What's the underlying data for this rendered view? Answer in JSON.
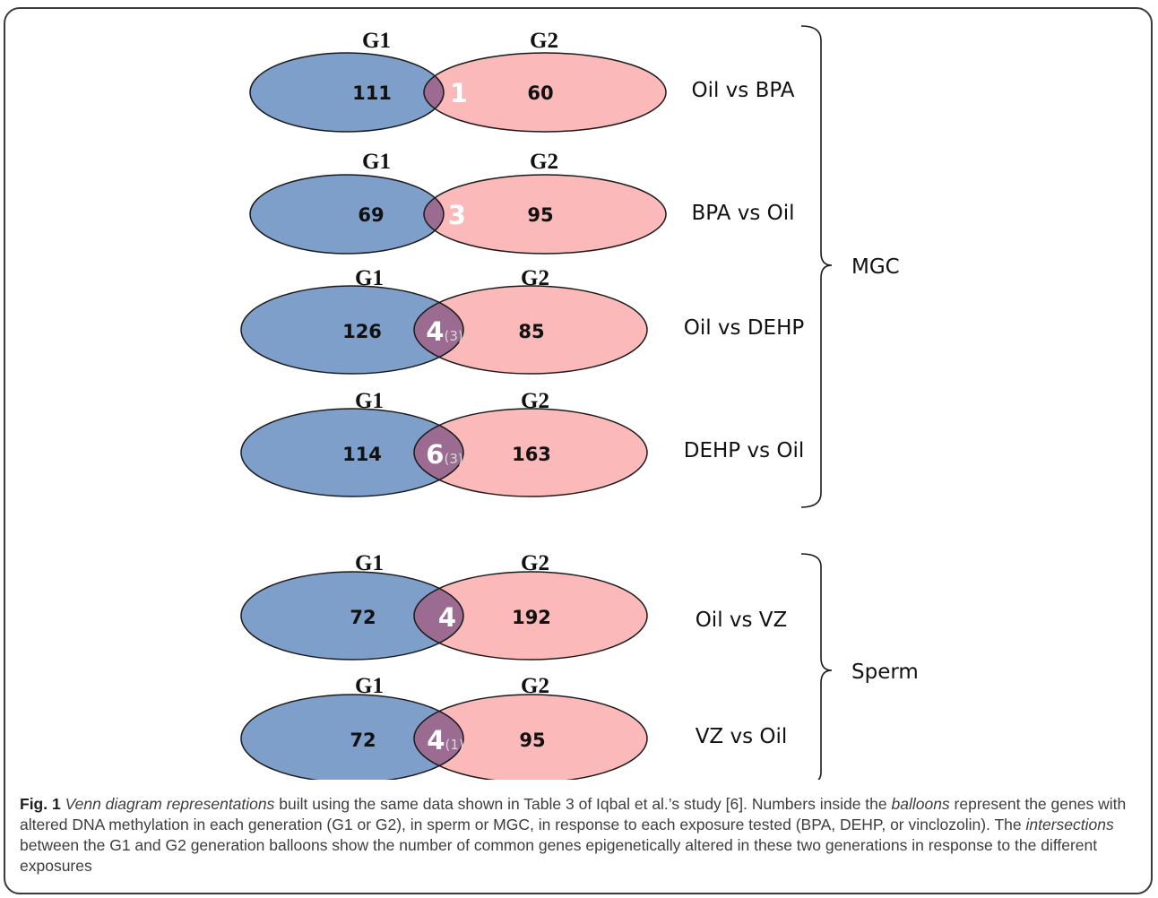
{
  "colors": {
    "g1_fill": "#7f9fcb",
    "g2_fill": "#fbb9b9",
    "overlap_fill": "#9b6b92",
    "outline": "#1a1a1a"
  },
  "diagrams": [
    {
      "g1_label": "G1",
      "g2_label": "G2",
      "g1_value": "111",
      "overlap_value": "1",
      "overlap_extra": "",
      "g2_value": "60",
      "comparison": "Oil vs BPA"
    },
    {
      "g1_label": "G1",
      "g2_label": "G2",
      "g1_value": "69",
      "overlap_value": "3",
      "overlap_extra": "",
      "g2_value": "95",
      "comparison": "BPA vs Oil"
    },
    {
      "g1_label": "G1",
      "g2_label": "G2",
      "g1_value": "126",
      "overlap_value": "4",
      "overlap_extra": "(3)",
      "g2_value": "85",
      "comparison": "Oil vs DEHP"
    },
    {
      "g1_label": "G1",
      "g2_label": "G2",
      "g1_value": "114",
      "overlap_value": "6",
      "overlap_extra": "(3)",
      "g2_value": "163",
      "comparison": "DEHP vs Oil"
    },
    {
      "g1_label": "G1",
      "g2_label": "G2",
      "g1_value": "72",
      "overlap_value": "4",
      "overlap_extra": "",
      "g2_value": "192",
      "comparison": "Oil vs VZ"
    },
    {
      "g1_label": "G1",
      "g2_label": "G2",
      "g1_value": "72",
      "overlap_value": "4",
      "overlap_extra": "(1)",
      "g2_value": "95",
      "comparison": "VZ vs Oil"
    }
  ],
  "groups": [
    {
      "label": "MGC"
    },
    {
      "label": "Sperm"
    }
  ],
  "caption": {
    "fig_label": "Fig. 1",
    "italic_intro": "Venn diagram representations",
    "part1": " built using the same data shown in Table 3 of Iqbal et al.’s study [6]. Numbers inside the ",
    "italic_balloons": "balloons",
    "part2": " represent the genes with altered DNA methylation in each generation (G1 or G2), in sperm or MGC, in response to each exposure tested (BPA, DEHP, or vinclozolin). The ",
    "italic_intersections": "intersections",
    "part3": " between the G1 and G2 generation balloons show the number of common genes epigenetically altered in these two generations in response to the different exposures"
  }
}
